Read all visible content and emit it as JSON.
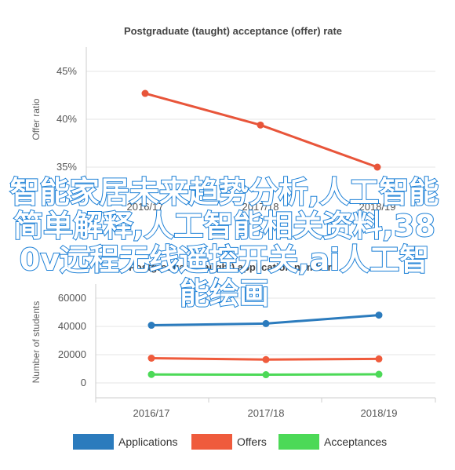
{
  "overlay_text": "智能家居未来趋势分析,人工智能简单解释,人工智能相关资料,380v远程无线遥控开关,ai人工智能绘画",
  "chart_data": [
    {
      "type": "line",
      "title": "Postgraduate (taught) acceptance (offer) rate",
      "ylabel": "Offer ratio",
      "categories": [
        "2016/17",
        "2017/18",
        "2018/19"
      ],
      "y_ticks": [
        "35%",
        "40%",
        "45%"
      ],
      "ylim": [
        35,
        45
      ],
      "series": [
        {
          "name": "",
          "color": "#e8553a",
          "values": [
            42.7,
            39.4,
            35.0
          ]
        }
      ]
    },
    {
      "type": "line",
      "title": "Postgraduate (taught) application numbers",
      "ylabel": "Number of students",
      "categories": [
        "2016/17",
        "2017/18",
        "2018/19"
      ],
      "y_ticks": [
        "0",
        "20000",
        "40000",
        "60000"
      ],
      "ylim": [
        0,
        60000
      ],
      "legend_position": "bottom",
      "series": [
        {
          "name": "Applications",
          "color": "#2b7bbd",
          "values": [
            40800,
            42000,
            48000
          ]
        },
        {
          "name": "Offers",
          "color": "#ef5b3c",
          "values": [
            17500,
            16500,
            17000
          ]
        },
        {
          "name": "Acceptances",
          "color": "#4cd957",
          "values": [
            6000,
            5800,
            6100
          ]
        }
      ]
    }
  ]
}
